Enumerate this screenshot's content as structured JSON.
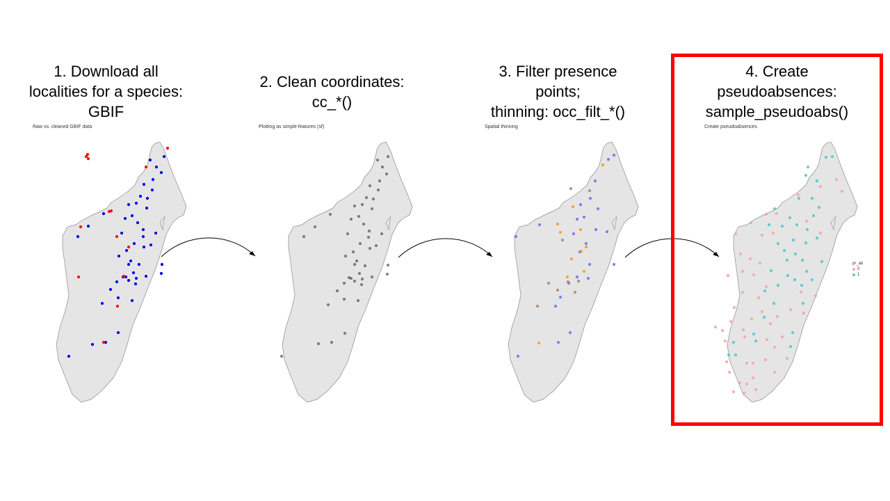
{
  "panels": [
    {
      "title_lines": [
        "1. Download all",
        "localities for a species:",
        "GBIF"
      ],
      "subtitle": "Raw vs. cleaned GBIF data"
    },
    {
      "title_lines": [
        "2. Clean coordinates:",
        "cc_*()"
      ],
      "subtitle": "Plotting as simple features (sf)"
    },
    {
      "title_lines": [
        "3. Filter presence",
        "points;",
        "thinning: occ_filt_*()"
      ],
      "subtitle": "Spatial thinning"
    },
    {
      "title_lines": [
        "4. Create",
        "pseudoabsences:",
        "sample_pseudoabs()"
      ],
      "subtitle": "Create pseudoabsences"
    }
  ],
  "legend": {
    "title": "pr_ab",
    "items": [
      "0",
      "1"
    ]
  },
  "colors": {
    "map_fill": "#e5e5e5",
    "map_stroke": "#8a8a8a",
    "raw_points": "#ff0000",
    "clean_points": "#0000e6",
    "plain_points": "#333333",
    "thinned_kept": "#6b6bf0",
    "thinned_orange": "#f0a020",
    "thinned_brown": "#b08060",
    "absence": "#f4a6a0",
    "presence": "#4fc9cf",
    "highlight": "#ff0000"
  }
}
